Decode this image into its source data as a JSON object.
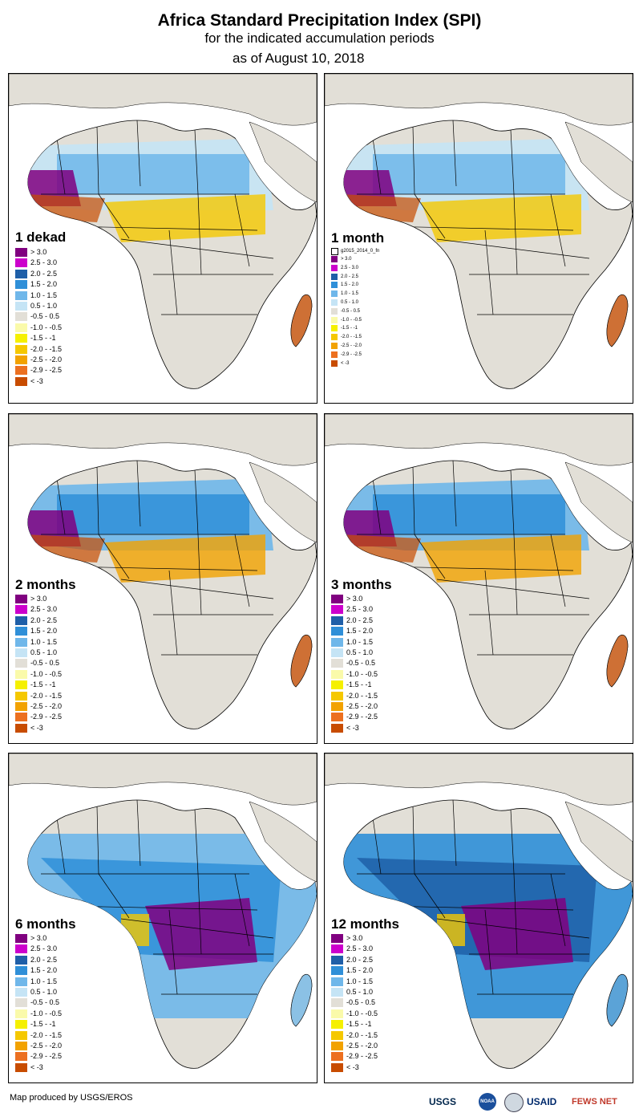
{
  "header": {
    "title": "Africa Standard Precipitation Index (SPI)",
    "subtitle": "for the indicated accumulation periods",
    "date": "as of August 10, 2018"
  },
  "colors": {
    "ocean": "#ffffff",
    "land_neutral": "#e2dfd7",
    "border": "#000000"
  },
  "legend_classes": [
    {
      "label": "> 3.0",
      "color": "#800080"
    },
    {
      "label": "2.5 - 3.0",
      "color": "#cc00cc"
    },
    {
      "label": "2.0 - 2.5",
      "color": "#1f5fa8"
    },
    {
      "label": "1.5 - 2.0",
      "color": "#2f8fd8"
    },
    {
      "label": "1.0 - 1.5",
      "color": "#6fb7ea"
    },
    {
      "label": "0.5 - 1.0",
      "color": "#c5e4f5"
    },
    {
      "label": "-0.5 - 0.5",
      "color": "#e2dfd7"
    },
    {
      "label": "-1.0 - -0.5",
      "color": "#fafaaa"
    },
    {
      "label": "-1.5 - -1",
      "color": "#f5f000"
    },
    {
      "label": "-2.0 - -1.5",
      "color": "#f5c800"
    },
    {
      "label": "-2.5 - -2.0",
      "color": "#f2a200"
    },
    {
      "label": "-2.9 - -2.5",
      "color": "#ec7020"
    },
    {
      "label": "< -3",
      "color": "#c84c00"
    }
  ],
  "panels": [
    {
      "title": "1 dekad"
    },
    {
      "title": "1 month",
      "extra_legend": "g2015_2014_0_fn"
    },
    {
      "title": "2 months"
    },
    {
      "title": "3 months"
    },
    {
      "title": "6 months"
    },
    {
      "title": "12 months"
    }
  ],
  "footer": {
    "credit": "Map produced by USGS/EROS",
    "logos": [
      "USGS",
      "NOAA",
      "USAID",
      "FEWS NET"
    ]
  }
}
